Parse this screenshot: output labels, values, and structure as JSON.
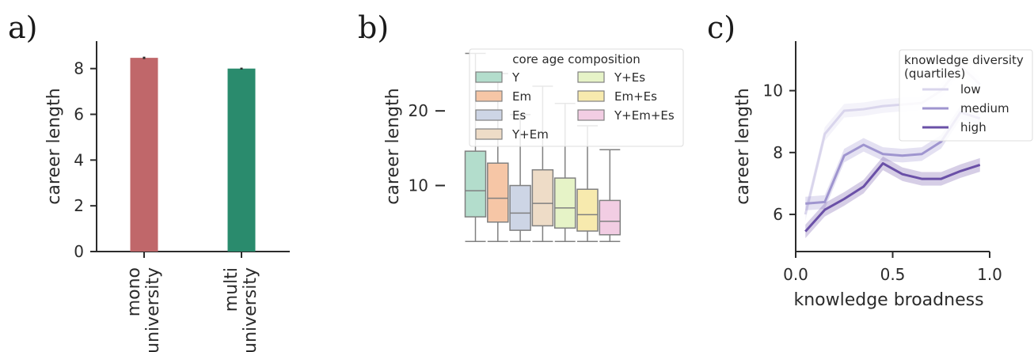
{
  "chart_data": [
    {
      "panel": "a)",
      "type": "bar",
      "categories": [
        "mono\nuniversity",
        "multi\nuniversity"
      ],
      "values": [
        8.47,
        8.0
      ],
      "errors": [
        0.05,
        0.04
      ],
      "colors": [
        "#c0676a",
        "#2a8b6d"
      ],
      "xlabel": "",
      "ylabel": "career length",
      "ylim": [
        0,
        9.2
      ],
      "yticks": [
        0,
        2,
        4,
        6,
        8
      ]
    },
    {
      "panel": "b)",
      "type": "box",
      "ylabel": "career length",
      "ylim": [
        2.0,
        28.5
      ],
      "yticks": [
        10,
        20
      ],
      "legend_title": "core age composition",
      "legend_position": "top-right",
      "series": [
        {
          "name": "Y",
          "color": "#b3ddcc",
          "whislo": 2.5,
          "q1": 5.8,
          "med": 9.3,
          "q3": 14.6,
          "whishi": 27.7
        },
        {
          "name": "Em",
          "color": "#f6c6a6",
          "whislo": 2.5,
          "q1": 5.1,
          "med": 8.3,
          "q3": 13.0,
          "whishi": 25.0
        },
        {
          "name": "Es",
          "color": "#cdd5e5",
          "whislo": 2.5,
          "q1": 4.0,
          "med": 6.3,
          "q3": 10.0,
          "whishi": 19.5
        },
        {
          "name": "Y+Em",
          "color": "#eedcc7",
          "whislo": 2.5,
          "q1": 4.6,
          "med": 7.6,
          "q3": 12.1,
          "whishi": 23.3
        },
        {
          "name": "Y+Es",
          "color": "#e6f3c7",
          "whislo": 2.5,
          "q1": 4.3,
          "med": 7.0,
          "q3": 11.0,
          "whishi": 21.0
        },
        {
          "name": "Em+Es",
          "color": "#f7eaae",
          "whislo": 2.5,
          "q1": 3.9,
          "med": 6.1,
          "q3": 9.5,
          "whishi": 18.0
        },
        {
          "name": "Y+Em+Es",
          "color": "#f2cde3",
          "whislo": 2.5,
          "q1": 3.4,
          "med": 5.2,
          "q3": 8.0,
          "whishi": 14.8
        }
      ]
    },
    {
      "panel": "c)",
      "type": "line",
      "xlabel": "knowledge broadness",
      "ylabel": "career length",
      "xlim": [
        0.0,
        1.0
      ],
      "ylim": [
        4.8,
        11.6
      ],
      "xticks": [
        0.0,
        0.5,
        1.0
      ],
      "xtick_labels": [
        "0.0",
        "0.5",
        "1.0"
      ],
      "yticks": [
        6,
        8,
        10
      ],
      "legend_title": "knowledge diversity\n(quartiles)",
      "legend_position": "top-right",
      "x": [
        0.05,
        0.15,
        0.25,
        0.35,
        0.45,
        0.55,
        0.65,
        0.75,
        0.85,
        0.95
      ],
      "series": [
        {
          "name": "low",
          "color": "#d9d5ec",
          "values": [
            6.0,
            8.6,
            9.35,
            9.4,
            9.5,
            9.55,
            9.6,
            10.0,
            10.8,
            10.2
          ]
        },
        {
          "name": "medium",
          "color": "#9f95cf",
          "values": [
            6.35,
            6.4,
            7.9,
            8.25,
            7.95,
            7.9,
            7.95,
            8.35,
            9.3,
            9.1
          ]
        },
        {
          "name": "high",
          "color": "#6a50a7",
          "values": [
            5.45,
            6.15,
            6.5,
            6.9,
            7.65,
            7.3,
            7.15,
            7.15,
            7.4,
            7.6
          ]
        }
      ]
    }
  ]
}
